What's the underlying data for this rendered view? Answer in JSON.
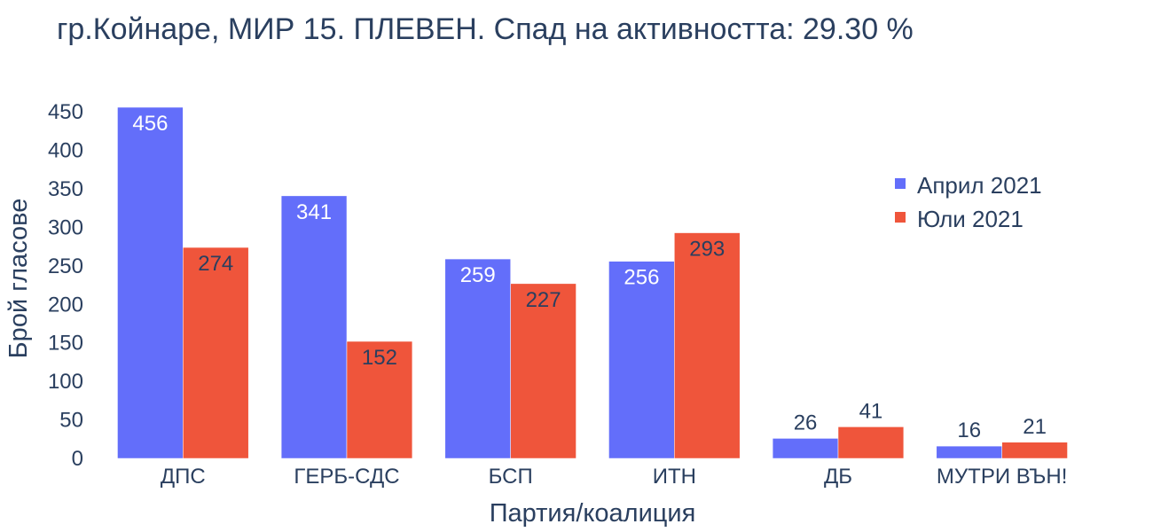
{
  "chart_data": {
    "type": "bar",
    "title": "гр.Койнаре, МИР 15. ПЛЕВЕН. Спад на активността: 29.30 %",
    "xlabel": "Партия/коалиция",
    "ylabel": "Брой гласове",
    "categories": [
      "ДПС",
      "ГЕРБ-СДС",
      "БСП",
      "ИТН",
      "ДБ",
      "МУТРИ ВЪН!"
    ],
    "series": [
      {
        "name": "Април 2021",
        "color": "#636efa",
        "values": [
          456,
          341,
          259,
          256,
          26,
          16
        ]
      },
      {
        "name": "Юли 2021",
        "color": "#ef553b",
        "values": [
          274,
          152,
          227,
          293,
          41,
          21
        ]
      }
    ],
    "ylim": [
      0,
      456
    ],
    "yticks": [
      0,
      50,
      100,
      150,
      200,
      250,
      300,
      350,
      400,
      450
    ],
    "grid": false,
    "legend_position": "top-right",
    "barmode": "group"
  }
}
